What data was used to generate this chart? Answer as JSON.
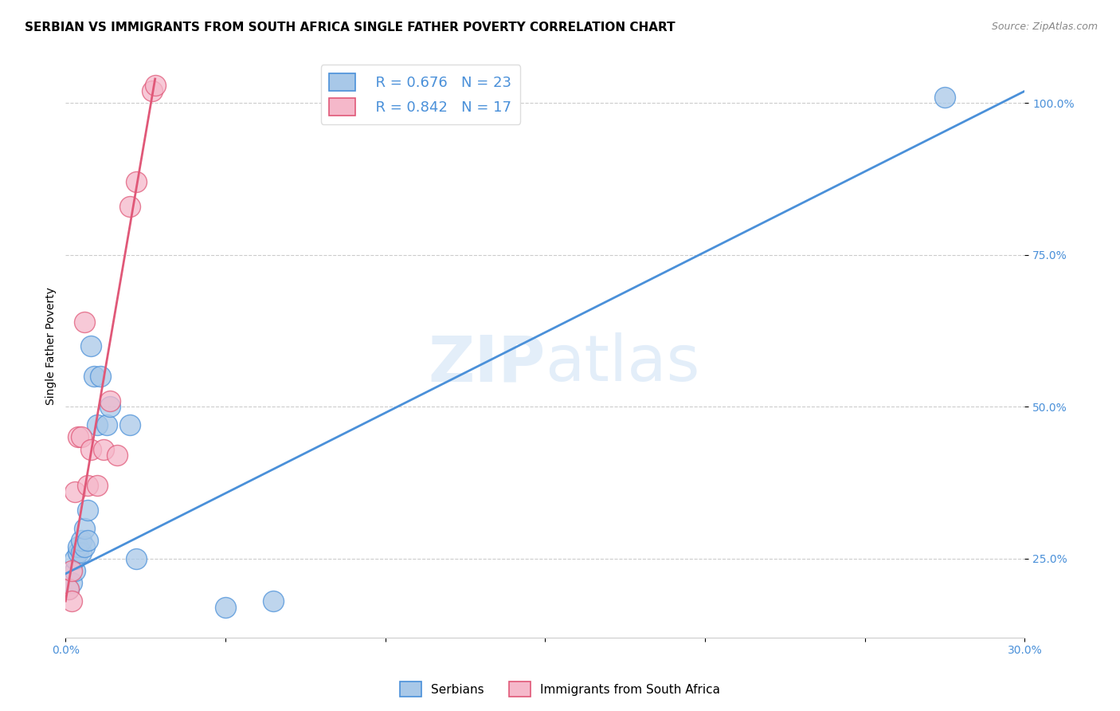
{
  "title": "SERBIAN VS IMMIGRANTS FROM SOUTH AFRICA SINGLE FATHER POVERTY CORRELATION CHART",
  "source": "Source: ZipAtlas.com",
  "ylabel": "Single Father Poverty",
  "ytick_labels": [
    "25.0%",
    "50.0%",
    "75.0%",
    "100.0%"
  ],
  "ytick_values": [
    0.25,
    0.5,
    0.75,
    1.0
  ],
  "xlim": [
    0.0,
    0.3
  ],
  "ylim": [
    0.12,
    1.08
  ],
  "watermark_zip": "ZIP",
  "watermark_atlas": "atlas",
  "serbian_R": 0.676,
  "serbian_N": 23,
  "southafrica_R": 0.842,
  "southafrica_N": 17,
  "serbian_color": "#a8c8e8",
  "serbian_line_color": "#4a90d9",
  "southafrica_color": "#f5b8ca",
  "southafrica_line_color": "#e05878",
  "serbian_x": [
    0.001,
    0.002,
    0.003,
    0.003,
    0.004,
    0.004,
    0.005,
    0.005,
    0.006,
    0.006,
    0.007,
    0.007,
    0.008,
    0.009,
    0.01,
    0.011,
    0.013,
    0.014,
    0.02,
    0.022,
    0.05,
    0.065,
    0.275
  ],
  "serbian_y": [
    0.2,
    0.21,
    0.23,
    0.25,
    0.26,
    0.27,
    0.26,
    0.28,
    0.27,
    0.3,
    0.28,
    0.33,
    0.6,
    0.55,
    0.47,
    0.55,
    0.47,
    0.5,
    0.47,
    0.25,
    0.17,
    0.18,
    1.01
  ],
  "southafrica_x": [
    0.001,
    0.002,
    0.002,
    0.003,
    0.004,
    0.005,
    0.006,
    0.007,
    0.008,
    0.01,
    0.012,
    0.014,
    0.016,
    0.02,
    0.022,
    0.027,
    0.028
  ],
  "southafrica_y": [
    0.2,
    0.18,
    0.23,
    0.36,
    0.45,
    0.45,
    0.64,
    0.37,
    0.43,
    0.37,
    0.43,
    0.51,
    0.42,
    0.83,
    0.87,
    1.02,
    1.03
  ],
  "serbian_line_x": [
    0.0,
    0.3
  ],
  "serbian_line_y": [
    0.225,
    1.02
  ],
  "southafrica_line_x": [
    0.0,
    0.028
  ],
  "southafrica_line_y": [
    0.18,
    1.04
  ],
  "legend_box_color": "#ffffff",
  "legend_color": "#4a90d9",
  "background_color": "#ffffff",
  "grid_color": "#cccccc",
  "title_fontsize": 11,
  "axis_label_fontsize": 10,
  "tick_fontsize": 10,
  "legend_fontsize": 13,
  "source_fontsize": 9
}
